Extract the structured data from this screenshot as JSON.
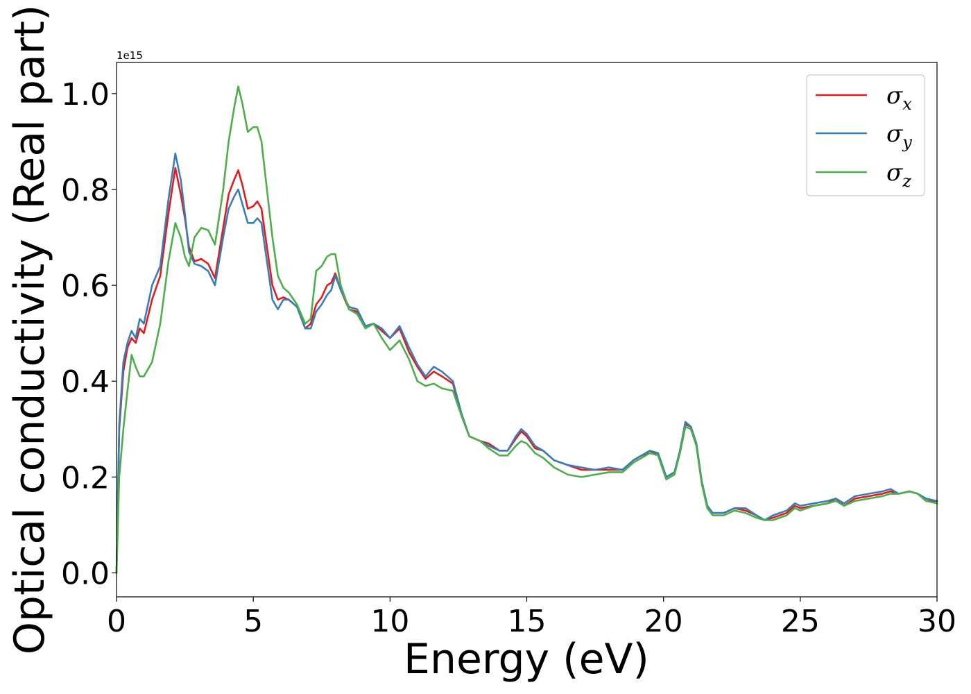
{
  "chart_data": {
    "type": "line",
    "xlabel": "Energy (eV)",
    "ylabel": "Optical conductivity (Real part)",
    "y_offset_text": "1e15",
    "xlim": [
      0,
      30
    ],
    "ylim": [
      -0.05,
      1.065
    ],
    "x_ticks": [
      0,
      5,
      10,
      15,
      20,
      25,
      30
    ],
    "x_tick_labels": [
      "0",
      "5",
      "10",
      "15",
      "20",
      "25",
      "30"
    ],
    "y_ticks": [
      0.0,
      0.2,
      0.4,
      0.6,
      0.8,
      1.0
    ],
    "y_tick_labels": [
      "0.0",
      "0.2",
      "0.4",
      "0.6",
      "0.8",
      "1.0"
    ],
    "grid": false,
    "legend_position": "top-right",
    "series": [
      {
        "name": "σx",
        "legend_symbol": "σ",
        "legend_sub": "x",
        "color": "#e41a1c",
        "x": [
          0,
          0.1,
          0.25,
          0.4,
          0.55,
          0.7,
          0.85,
          1.0,
          1.3,
          1.6,
          1.9,
          2.15,
          2.35,
          2.5,
          2.65,
          2.85,
          3.1,
          3.35,
          3.6,
          3.9,
          4.1,
          4.3,
          4.45,
          4.6,
          4.8,
          5.0,
          5.15,
          5.3,
          5.5,
          5.7,
          5.9,
          6.1,
          6.3,
          6.6,
          6.9,
          7.1,
          7.3,
          7.5,
          7.7,
          7.85,
          8.0,
          8.2,
          8.5,
          8.8,
          9.1,
          9.4,
          9.7,
          10.0,
          10.35,
          10.7,
          11.0,
          11.3,
          11.6,
          11.9,
          12.3,
          12.6,
          12.9,
          13.3,
          13.6,
          14.0,
          14.3,
          14.6,
          14.8,
          15.0,
          15.3,
          15.6,
          16.0,
          16.5,
          17.0,
          17.5,
          18.0,
          18.5,
          18.9,
          19.2,
          19.5,
          19.8,
          20.1,
          20.4,
          20.6,
          20.8,
          21.0,
          21.2,
          21.4,
          21.6,
          21.8,
          22.2,
          22.6,
          23.0,
          23.4,
          23.7,
          24.0,
          24.5,
          24.8,
          25.0,
          25.5,
          26.0,
          26.3,
          26.6,
          27.0,
          27.5,
          28.0,
          28.3,
          28.6,
          29.0,
          29.3,
          29.6,
          30.0
        ],
        "values": [
          0.0,
          0.3,
          0.42,
          0.47,
          0.49,
          0.48,
          0.51,
          0.5,
          0.57,
          0.62,
          0.75,
          0.845,
          0.79,
          0.74,
          0.68,
          0.65,
          0.655,
          0.645,
          0.615,
          0.72,
          0.79,
          0.82,
          0.84,
          0.81,
          0.76,
          0.765,
          0.775,
          0.76,
          0.68,
          0.6,
          0.57,
          0.575,
          0.57,
          0.555,
          0.51,
          0.52,
          0.56,
          0.575,
          0.6,
          0.605,
          0.625,
          0.59,
          0.55,
          0.545,
          0.515,
          0.52,
          0.505,
          0.49,
          0.51,
          0.46,
          0.43,
          0.405,
          0.42,
          0.41,
          0.395,
          0.33,
          0.285,
          0.275,
          0.27,
          0.255,
          0.255,
          0.28,
          0.295,
          0.285,
          0.26,
          0.255,
          0.235,
          0.225,
          0.215,
          0.215,
          0.215,
          0.215,
          0.235,
          0.245,
          0.25,
          0.25,
          0.2,
          0.21,
          0.25,
          0.31,
          0.305,
          0.27,
          0.19,
          0.14,
          0.125,
          0.125,
          0.135,
          0.13,
          0.12,
          0.11,
          0.115,
          0.125,
          0.14,
          0.135,
          0.14,
          0.145,
          0.155,
          0.14,
          0.155,
          0.16,
          0.165,
          0.17,
          0.165,
          0.17,
          0.165,
          0.15,
          0.15
        ]
      },
      {
        "name": "σy",
        "legend_symbol": "σ",
        "legend_sub": "y",
        "color": "#377eb8",
        "x": [
          0,
          0.1,
          0.25,
          0.4,
          0.55,
          0.7,
          0.85,
          1.0,
          1.3,
          1.6,
          1.9,
          2.15,
          2.35,
          2.5,
          2.65,
          2.85,
          3.1,
          3.35,
          3.6,
          3.9,
          4.1,
          4.3,
          4.45,
          4.6,
          4.8,
          5.0,
          5.15,
          5.3,
          5.5,
          5.7,
          5.9,
          6.1,
          6.3,
          6.6,
          6.9,
          7.1,
          7.3,
          7.5,
          7.7,
          7.85,
          8.0,
          8.2,
          8.5,
          8.8,
          9.1,
          9.4,
          9.7,
          10.0,
          10.35,
          10.7,
          11.0,
          11.3,
          11.6,
          11.9,
          12.3,
          12.6,
          12.9,
          13.3,
          13.6,
          14.0,
          14.3,
          14.6,
          14.8,
          15.0,
          15.3,
          15.6,
          16.0,
          16.5,
          17.0,
          17.5,
          18.0,
          18.5,
          18.9,
          19.2,
          19.5,
          19.8,
          20.1,
          20.4,
          20.6,
          20.8,
          21.0,
          21.2,
          21.4,
          21.6,
          21.8,
          22.2,
          22.6,
          23.0,
          23.4,
          23.7,
          24.0,
          24.5,
          24.8,
          25.0,
          25.5,
          26.0,
          26.3,
          26.6,
          27.0,
          27.5,
          28.0,
          28.3,
          28.6,
          29.0,
          29.3,
          29.6,
          30.0
        ],
        "values": [
          0.0,
          0.31,
          0.44,
          0.48,
          0.505,
          0.49,
          0.53,
          0.52,
          0.6,
          0.64,
          0.78,
          0.875,
          0.82,
          0.75,
          0.67,
          0.645,
          0.64,
          0.63,
          0.6,
          0.7,
          0.76,
          0.785,
          0.8,
          0.77,
          0.73,
          0.73,
          0.74,
          0.73,
          0.65,
          0.57,
          0.55,
          0.57,
          0.57,
          0.555,
          0.51,
          0.51,
          0.545,
          0.56,
          0.58,
          0.59,
          0.62,
          0.59,
          0.555,
          0.55,
          0.515,
          0.52,
          0.51,
          0.49,
          0.515,
          0.47,
          0.435,
          0.41,
          0.43,
          0.42,
          0.4,
          0.335,
          0.285,
          0.275,
          0.265,
          0.255,
          0.255,
          0.285,
          0.3,
          0.29,
          0.265,
          0.255,
          0.235,
          0.225,
          0.22,
          0.215,
          0.22,
          0.215,
          0.235,
          0.245,
          0.255,
          0.25,
          0.2,
          0.21,
          0.255,
          0.315,
          0.305,
          0.27,
          0.19,
          0.14,
          0.125,
          0.125,
          0.135,
          0.135,
          0.12,
          0.11,
          0.12,
          0.13,
          0.145,
          0.14,
          0.145,
          0.15,
          0.155,
          0.145,
          0.16,
          0.165,
          0.17,
          0.175,
          0.165,
          0.17,
          0.165,
          0.155,
          0.15
        ]
      },
      {
        "name": "σz",
        "legend_symbol": "σ",
        "legend_sub": "z",
        "color": "#4daf4a",
        "x": [
          0,
          0.1,
          0.25,
          0.4,
          0.55,
          0.7,
          0.85,
          1.0,
          1.3,
          1.6,
          1.9,
          2.15,
          2.35,
          2.5,
          2.65,
          2.85,
          3.1,
          3.35,
          3.6,
          3.9,
          4.1,
          4.3,
          4.45,
          4.6,
          4.8,
          5.0,
          5.15,
          5.3,
          5.5,
          5.7,
          5.9,
          6.1,
          6.3,
          6.6,
          6.9,
          7.1,
          7.3,
          7.5,
          7.7,
          7.85,
          8.0,
          8.2,
          8.5,
          8.8,
          9.1,
          9.4,
          9.7,
          10.0,
          10.35,
          10.7,
          11.0,
          11.3,
          11.6,
          11.9,
          12.3,
          12.6,
          12.9,
          13.3,
          13.6,
          14.0,
          14.3,
          14.6,
          14.8,
          15.0,
          15.3,
          15.6,
          16.0,
          16.5,
          17.0,
          17.5,
          18.0,
          18.5,
          18.9,
          19.2,
          19.5,
          19.8,
          20.1,
          20.4,
          20.6,
          20.8,
          21.0,
          21.2,
          21.4,
          21.6,
          21.8,
          22.2,
          22.6,
          23.0,
          23.4,
          23.7,
          24.0,
          24.5,
          24.8,
          25.0,
          25.5,
          26.0,
          26.3,
          26.6,
          27.0,
          27.5,
          28.0,
          28.3,
          28.6,
          29.0,
          29.3,
          29.6,
          30.0
        ],
        "values": [
          0.0,
          0.2,
          0.3,
          0.38,
          0.455,
          0.43,
          0.41,
          0.41,
          0.44,
          0.52,
          0.65,
          0.73,
          0.7,
          0.66,
          0.64,
          0.7,
          0.72,
          0.715,
          0.685,
          0.8,
          0.9,
          0.97,
          1.015,
          0.98,
          0.92,
          0.93,
          0.93,
          0.9,
          0.8,
          0.7,
          0.62,
          0.595,
          0.585,
          0.56,
          0.52,
          0.53,
          0.63,
          0.64,
          0.66,
          0.665,
          0.665,
          0.6,
          0.55,
          0.54,
          0.51,
          0.52,
          0.49,
          0.465,
          0.485,
          0.445,
          0.4,
          0.39,
          0.395,
          0.385,
          0.38,
          0.33,
          0.285,
          0.275,
          0.26,
          0.245,
          0.245,
          0.265,
          0.275,
          0.27,
          0.25,
          0.24,
          0.22,
          0.205,
          0.2,
          0.205,
          0.21,
          0.21,
          0.23,
          0.24,
          0.25,
          0.245,
          0.195,
          0.205,
          0.25,
          0.305,
          0.3,
          0.265,
          0.185,
          0.135,
          0.12,
          0.12,
          0.13,
          0.125,
          0.115,
          0.11,
          0.11,
          0.12,
          0.135,
          0.13,
          0.14,
          0.145,
          0.15,
          0.14,
          0.15,
          0.155,
          0.16,
          0.165,
          0.165,
          0.17,
          0.165,
          0.15,
          0.145
        ]
      }
    ]
  }
}
